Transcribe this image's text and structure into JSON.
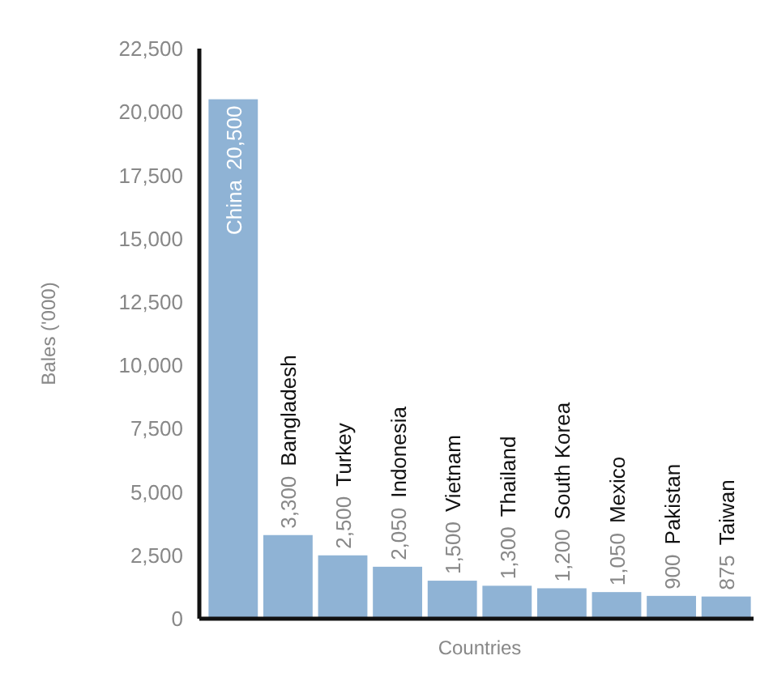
{
  "chart_data": {
    "type": "bar",
    "xlabel": "Countries",
    "ylabel": "Bales ('000)",
    "categories": [
      "China",
      "Bangladesh",
      "Turkey",
      "Indonesia",
      "Vietnam",
      "Thailand",
      "South Korea",
      "Mexico",
      "Pakistan",
      "Taiwan"
    ],
    "values": [
      20500,
      3300,
      2500,
      2050,
      1500,
      1300,
      1200,
      1050,
      900,
      875
    ],
    "value_labels": [
      "20,500",
      "3,300",
      "2,500",
      "2,050",
      "1,500",
      "1,300",
      "1,200",
      "1,050",
      "900",
      "875"
    ],
    "color": "#8fb3d5",
    "ylim": [
      0,
      22500
    ],
    "yticks": [
      {
        "value": 0,
        "label": "0"
      },
      {
        "value": 2500,
        "label": "2,500"
      },
      {
        "value": 5000,
        "label": "5,000"
      },
      {
        "value": 7500,
        "label": "7,500"
      },
      {
        "value": 10000,
        "label": "10,000"
      },
      {
        "value": 12500,
        "label": "12,500"
      },
      {
        "value": 15000,
        "label": "15,000"
      },
      {
        "value": 17500,
        "label": "17,500"
      },
      {
        "value": 20000,
        "label": "20,000"
      },
      {
        "value": 22500,
        "label": "22,500"
      }
    ]
  }
}
